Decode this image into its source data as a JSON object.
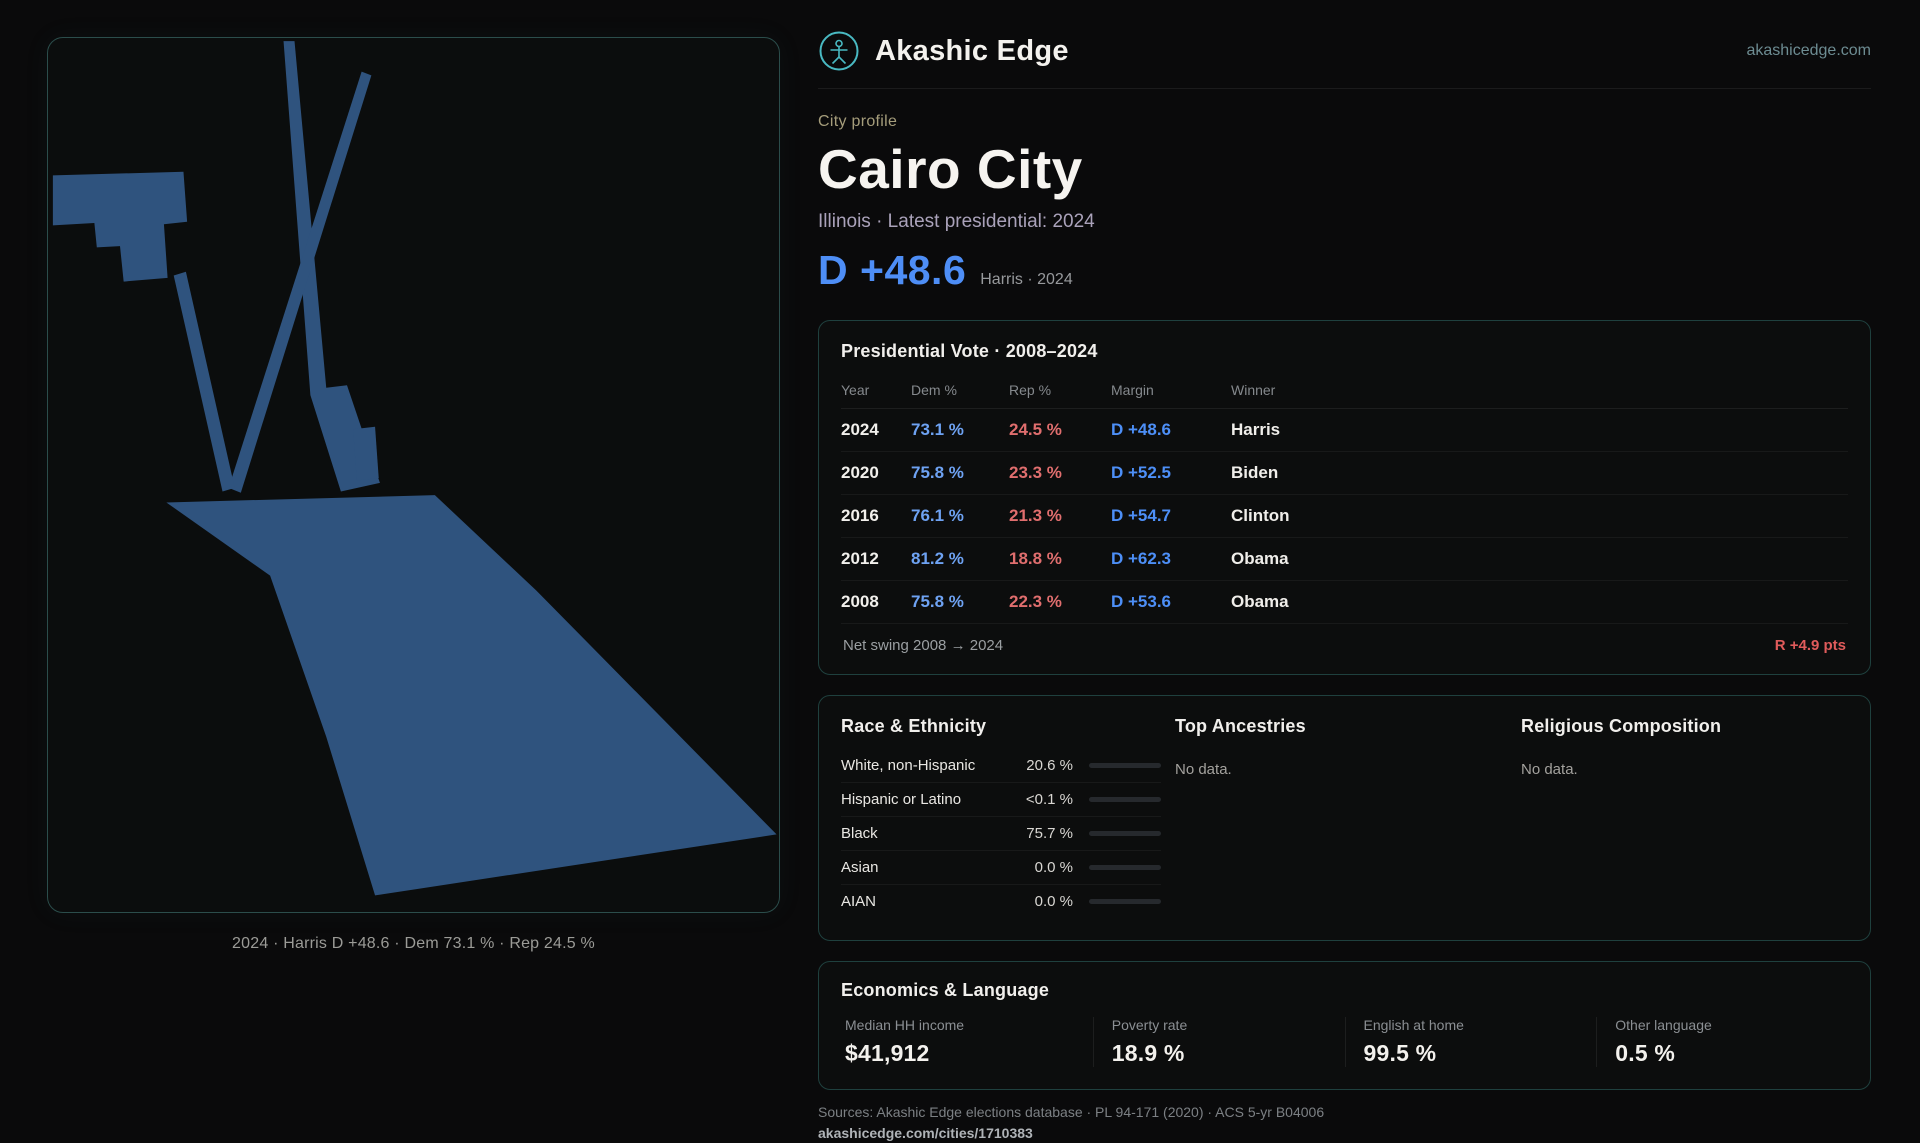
{
  "header": {
    "brand": "Akashic Edge",
    "domain": "akashicedge.com"
  },
  "map": {
    "caption": "2024 · Harris D +48.6 · Dem 73.1 % · Rep 24.5 %"
  },
  "profile": {
    "eyebrow": "City profile",
    "title": "Cairo City",
    "subtitle": "Illinois · Latest presidential: 2024",
    "margin_value": "D +48.6",
    "margin_caption": "Harris · 2024"
  },
  "vote": {
    "title": "Presidential Vote · 2008–2024",
    "columns": [
      "Year",
      "Dem %",
      "Rep %",
      "Margin",
      "Winner"
    ],
    "rows": [
      {
        "year": "2024",
        "dem": "73.1 %",
        "rep": "24.5 %",
        "margin": "D +48.6",
        "winner": "Harris"
      },
      {
        "year": "2020",
        "dem": "75.8 %",
        "rep": "23.3 %",
        "margin": "D +52.5",
        "winner": "Biden"
      },
      {
        "year": "2016",
        "dem": "76.1 %",
        "rep": "21.3 %",
        "margin": "D +54.7",
        "winner": "Clinton"
      },
      {
        "year": "2012",
        "dem": "81.2 %",
        "rep": "18.8 %",
        "margin": "D +62.3",
        "winner": "Obama"
      },
      {
        "year": "2008",
        "dem": "75.8 %",
        "rep": "22.3 %",
        "margin": "D +53.6",
        "winner": "Obama"
      }
    ],
    "net_swing_label": "Net swing 2008 → 2024",
    "net_swing_value": "R +4.9 pts"
  },
  "demographics": {
    "race_title": "Race & Ethnicity",
    "race_rows": [
      {
        "label": "White, non-Hispanic",
        "value": "20.6 %",
        "pct": 20.6,
        "bar_color": "#7a8089"
      },
      {
        "label": "Hispanic or Latino",
        "value": "<0.1 %",
        "pct": 0,
        "bar_color": "#7a8089"
      },
      {
        "label": "Black",
        "value": "75.7 %",
        "pct": 75.7,
        "bar_color": "#8b7fd6"
      },
      {
        "label": "Asian",
        "value": "0.0 %",
        "pct": 0,
        "bar_color": "#7a8089"
      },
      {
        "label": "AIAN",
        "value": "0.0 %",
        "pct": 0,
        "bar_color": "#7a8089"
      }
    ],
    "ancestries_title": "Top Ancestries",
    "ancestries_empty": "No data.",
    "religion_title": "Religious Composition",
    "religion_empty": "No data."
  },
  "economics": {
    "title": "Economics & Language",
    "stats": [
      {
        "label": "Median HH income",
        "value": "$41,912"
      },
      {
        "label": "Poverty rate",
        "value": "18.9 %"
      },
      {
        "label": "English at home",
        "value": "99.5 %"
      },
      {
        "label": "Other language",
        "value": "0.5 %"
      }
    ]
  },
  "footer": {
    "sources": "Sources: Akashic Edge elections database · PL 94-171 (2020) · ACS 5-yr B04006",
    "permalink": "akashicedge.com/cities/1710383"
  },
  "colors": {
    "dem_blue": "#4d8ff7",
    "rep_red": "#e06e6e",
    "swing_red": "#e05b5b",
    "bar_purple": "#8b7fd6",
    "map_fill": "#2f537e",
    "accent_teal": "#49b9c2",
    "eyebrow_olive": "#a59d7b"
  }
}
